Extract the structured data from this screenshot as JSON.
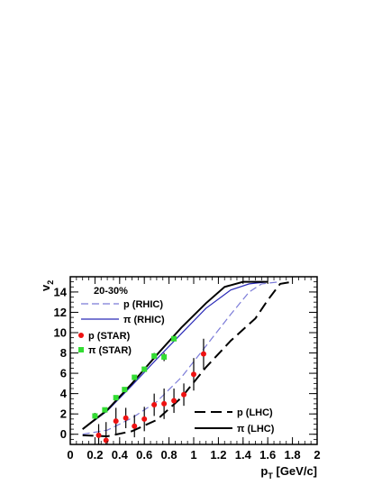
{
  "chart_data": {
    "type": "line",
    "annotation": "20-30%",
    "xlabel": "p_T [GeV/c]",
    "ylabel": "v_2",
    "xlim": [
      0,
      2
    ],
    "ylim": [
      -1,
      15.5
    ],
    "x_ticks": [
      "0",
      "0.2",
      "0.4",
      "0.6",
      "0.8",
      "1",
      "1.2",
      "1.4",
      "1.6",
      "1.8",
      "2"
    ],
    "y_ticks": [
      "0",
      "2",
      "4",
      "6",
      "8",
      "10",
      "12",
      "14"
    ],
    "legend_upper": [
      {
        "label": "p  (RHIC)",
        "style": "dashed-blue"
      },
      {
        "label": "π  (RHIC)",
        "style": "solid-blue"
      },
      {
        "label": "p  (STAR)",
        "style": "marker-red"
      },
      {
        "label": "π  (STAR)",
        "style": "marker-green"
      }
    ],
    "legend_lower": [
      {
        "label": "p  (LHC)",
        "style": "dashed-black"
      },
      {
        "label": "π  (LHC)",
        "style": "solid-black"
      }
    ],
    "series": [
      {
        "key": "p_rhic",
        "color": "#7b7bd8",
        "dash": "8,4",
        "width": 1.2,
        "points": [
          [
            0.1,
            0.0
          ],
          [
            0.3,
            0.4
          ],
          [
            0.5,
            1.6
          ],
          [
            0.7,
            3.2
          ],
          [
            0.9,
            5.6
          ],
          [
            1.1,
            8.7
          ],
          [
            1.3,
            11.8
          ],
          [
            1.45,
            14.0
          ],
          [
            1.55,
            14.8
          ],
          [
            1.7,
            15.0
          ]
        ]
      },
      {
        "key": "pi_rhic",
        "color": "#2a2ab8",
        "dash": "",
        "width": 1.2,
        "points": [
          [
            0.1,
            0.5
          ],
          [
            0.3,
            2.3
          ],
          [
            0.5,
            4.8
          ],
          [
            0.7,
            7.4
          ],
          [
            0.9,
            9.9
          ],
          [
            1.1,
            12.4
          ],
          [
            1.3,
            14.2
          ],
          [
            1.45,
            14.8
          ],
          [
            1.6,
            15.0
          ]
        ]
      },
      {
        "key": "p_lhc",
        "color": "#000000",
        "dash": "12,6",
        "width": 2,
        "points": [
          [
            0.1,
            -0.1
          ],
          [
            0.3,
            -0.2
          ],
          [
            0.5,
            0.3
          ],
          [
            0.7,
            1.4
          ],
          [
            0.9,
            3.6
          ],
          [
            1.1,
            6.6
          ],
          [
            1.3,
            9.2
          ],
          [
            1.5,
            11.4
          ],
          [
            1.6,
            13.2
          ],
          [
            1.7,
            14.8
          ],
          [
            1.8,
            15.0
          ]
        ]
      },
      {
        "key": "pi_lhc",
        "color": "#000000",
        "dash": "",
        "width": 2,
        "points": [
          [
            0.1,
            0.5
          ],
          [
            0.3,
            2.4
          ],
          [
            0.5,
            5.0
          ],
          [
            0.7,
            7.8
          ],
          [
            0.9,
            10.5
          ],
          [
            1.1,
            12.9
          ],
          [
            1.25,
            14.5
          ],
          [
            1.4,
            15.0
          ],
          [
            1.6,
            15.0
          ]
        ]
      }
    ],
    "markers": [
      {
        "key": "p_star",
        "color": "#ee1111",
        "shape": "circle",
        "points": [
          {
            "x": 0.23,
            "y": -0.1,
            "err": 1.1
          },
          {
            "x": 0.29,
            "y": -0.6,
            "err": 1.8
          },
          {
            "x": 0.37,
            "y": 1.3,
            "err": 1.3
          },
          {
            "x": 0.45,
            "y": 1.6,
            "err": 1.0
          },
          {
            "x": 0.52,
            "y": 0.8,
            "err": 1.1
          },
          {
            "x": 0.6,
            "y": 1.5,
            "err": 1.2
          },
          {
            "x": 0.68,
            "y": 2.9,
            "err": 1.1
          },
          {
            "x": 0.76,
            "y": 3.0,
            "err": 1.5
          },
          {
            "x": 0.84,
            "y": 3.3,
            "err": 1.2
          },
          {
            "x": 0.92,
            "y": 3.9,
            "err": 1.1
          },
          {
            "x": 1.0,
            "y": 5.9,
            "err": 1.6
          },
          {
            "x": 1.08,
            "y": 7.9,
            "err": 1.5
          }
        ]
      },
      {
        "key": "pi_star",
        "color": "#33dd33",
        "shape": "square",
        "points": [
          {
            "x": 0.2,
            "y": 1.8,
            "err": 0.3
          },
          {
            "x": 0.28,
            "y": 2.4,
            "err": 0.2
          },
          {
            "x": 0.37,
            "y": 3.6,
            "err": 0.2
          },
          {
            "x": 0.44,
            "y": 4.4,
            "err": 0.2
          },
          {
            "x": 0.52,
            "y": 5.6,
            "err": 0.2
          },
          {
            "x": 0.6,
            "y": 6.4,
            "err": 0.2
          },
          {
            "x": 0.68,
            "y": 7.7,
            "err": 0.3
          },
          {
            "x": 0.76,
            "y": 7.6,
            "err": 0.4
          },
          {
            "x": 0.84,
            "y": 9.4,
            "err": 0.2
          }
        ]
      }
    ]
  }
}
